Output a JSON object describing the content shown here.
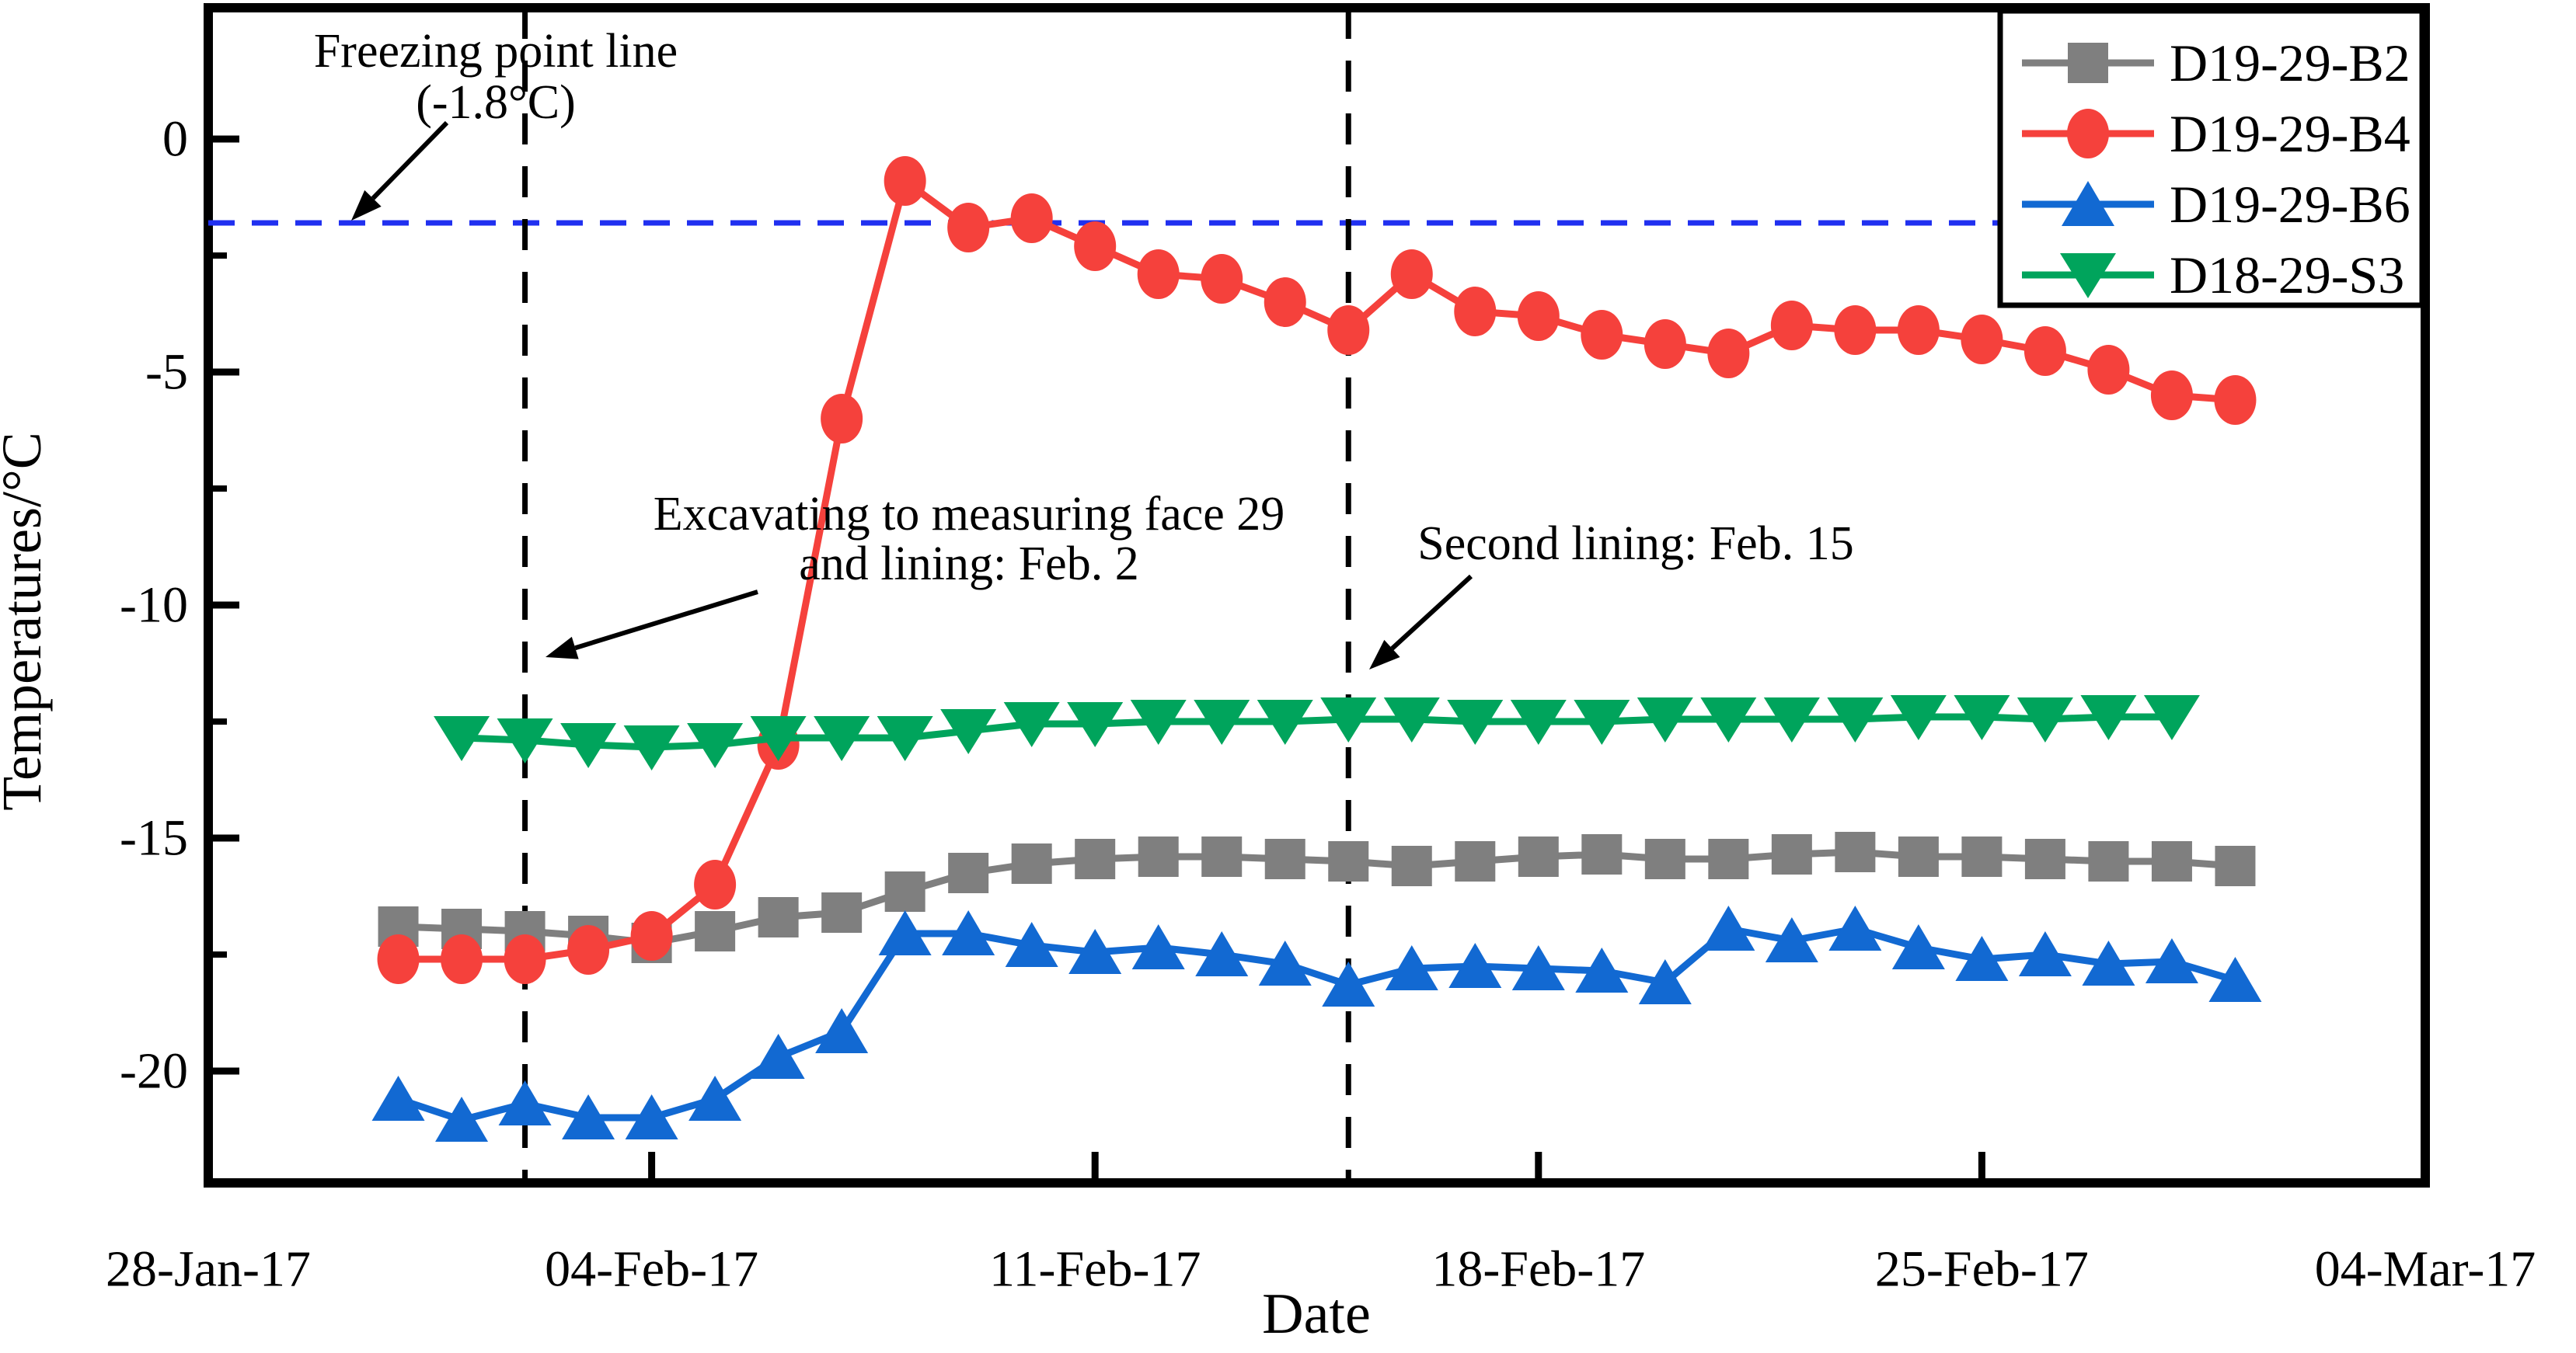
{
  "chart_data": {
    "type": "line",
    "title": "",
    "xlabel": "Date",
    "ylabel": "Temperatures/°C",
    "x_axis": {
      "tick_labels": [
        "28-Jan-17",
        "04-Feb-17",
        "11-Feb-17",
        "18-Feb-17",
        "25-Feb-17",
        "04-Mar-17"
      ],
      "tick_days_from_start": [
        0,
        7,
        14,
        21,
        28,
        35
      ],
      "start_date": "28-Jan-17"
    },
    "y_axis": {
      "tick_labels": [
        "0",
        "-5",
        "-10",
        "-15",
        "-20"
      ],
      "tick_values": [
        0,
        -5,
        -10,
        -15,
        -20
      ],
      "minor_tick_values": [
        -2.5,
        -7.5,
        -12.5,
        -17.5
      ],
      "range": [
        -22.4,
        2.8
      ],
      "grid": false
    },
    "legend_position": "top-right",
    "series": [
      {
        "id": "B2",
        "label": "D19-29-B2",
        "color": "#7f7f7f",
        "marker": "square",
        "start_day": 3,
        "dates": [
          "31-Jan",
          "01-Feb",
          "02-Feb",
          "03-Feb",
          "04-Feb",
          "05-Feb",
          "06-Feb",
          "07-Feb",
          "08-Feb",
          "09-Feb",
          "10-Feb",
          "11-Feb",
          "12-Feb",
          "13-Feb",
          "14-Feb",
          "15-Feb",
          "16-Feb",
          "17-Feb",
          "18-Feb",
          "19-Feb",
          "20-Feb",
          "21-Feb",
          "22-Feb",
          "23-Feb",
          "24-Feb",
          "25-Feb",
          "26-Feb",
          "27-Feb",
          "28-Feb",
          "01-Mar"
        ],
        "values": [
          -16.9,
          -16.95,
          -17.0,
          -17.1,
          -17.25,
          -17.0,
          -16.7,
          -16.6,
          -16.15,
          -15.75,
          -15.55,
          -15.45,
          -15.4,
          -15.4,
          -15.45,
          -15.5,
          -15.6,
          -15.5,
          -15.4,
          -15.35,
          -15.45,
          -15.45,
          -15.35,
          -15.3,
          -15.4,
          -15.4,
          -15.45,
          -15.5,
          -15.5,
          -15.6
        ]
      },
      {
        "id": "B4",
        "label": "D19-29-B4",
        "color": "#f5413c",
        "marker": "circle",
        "start_day": 3,
        "dates": [
          "31-Jan",
          "01-Feb",
          "02-Feb",
          "03-Feb",
          "04-Feb",
          "05-Feb",
          "06-Feb",
          "07-Feb",
          "08-Feb",
          "09-Feb",
          "10-Feb",
          "11-Feb",
          "12-Feb",
          "13-Feb",
          "14-Feb",
          "15-Feb",
          "16-Feb",
          "17-Feb",
          "18-Feb",
          "19-Feb",
          "20-Feb",
          "21-Feb",
          "22-Feb",
          "23-Feb",
          "24-Feb",
          "25-Feb",
          "26-Feb",
          "27-Feb",
          "28-Feb",
          "01-Mar"
        ],
        "values": [
          -17.6,
          -17.6,
          -17.6,
          -17.4,
          -17.1,
          -16.0,
          -13.0,
          -6.0,
          -0.9,
          -1.9,
          -1.7,
          -2.3,
          -2.9,
          -3.0,
          -3.5,
          -4.1,
          -2.9,
          -3.7,
          -3.8,
          -4.2,
          -4.4,
          -4.6,
          -4.0,
          -4.1,
          -4.1,
          -4.3,
          -4.55,
          -4.95,
          -5.5,
          -5.6
        ]
      },
      {
        "id": "B6",
        "label": "D19-29-B6",
        "color": "#1269d2",
        "marker": "triangle-up",
        "start_day": 3,
        "dates": [
          "31-Jan",
          "01-Feb",
          "02-Feb",
          "03-Feb",
          "04-Feb",
          "05-Feb",
          "06-Feb",
          "07-Feb",
          "08-Feb",
          "09-Feb",
          "10-Feb",
          "11-Feb",
          "12-Feb",
          "13-Feb",
          "14-Feb",
          "15-Feb",
          "16-Feb",
          "17-Feb",
          "18-Feb",
          "19-Feb",
          "20-Feb",
          "21-Feb",
          "22-Feb",
          "23-Feb",
          "24-Feb",
          "25-Feb",
          "26-Feb",
          "27-Feb",
          "28-Feb",
          "01-Mar"
        ],
        "values": [
          -20.6,
          -21.05,
          -20.7,
          -21.0,
          -21.0,
          -20.6,
          -19.7,
          -19.15,
          -17.05,
          -17.05,
          -17.3,
          -17.45,
          -17.35,
          -17.5,
          -17.7,
          -18.15,
          -17.8,
          -17.75,
          -17.8,
          -17.85,
          -18.1,
          -16.95,
          -17.2,
          -16.95,
          -17.35,
          -17.6,
          -17.5,
          -17.7,
          -17.65,
          -18.05
        ]
      },
      {
        "id": "S3",
        "label": "D18-29-S3",
        "color": "#00a45c",
        "marker": "triangle-down",
        "start_day": 4,
        "dates": [
          "01-Feb",
          "02-Feb",
          "03-Feb",
          "04-Feb",
          "05-Feb",
          "06-Feb",
          "07-Feb",
          "08-Feb",
          "09-Feb",
          "10-Feb",
          "11-Feb",
          "12-Feb",
          "13-Feb",
          "14-Feb",
          "15-Feb",
          "16-Feb",
          "17-Feb",
          "18-Feb",
          "19-Feb",
          "20-Feb",
          "21-Feb",
          "22-Feb",
          "23-Feb",
          "24-Feb",
          "25-Feb",
          "26-Feb",
          "27-Feb",
          "28-Feb"
        ],
        "values": [
          -12.85,
          -12.9,
          -13.0,
          -13.05,
          -13.0,
          -12.85,
          -12.85,
          -12.85,
          -12.7,
          -12.55,
          -12.55,
          -12.5,
          -12.5,
          -12.5,
          -12.45,
          -12.45,
          -12.5,
          -12.5,
          -12.5,
          -12.45,
          -12.45,
          -12.45,
          -12.45,
          -12.4,
          -12.4,
          -12.45,
          -12.4,
          -12.4
        ]
      }
    ],
    "reference_lines": {
      "freezing_point": {
        "value": -1.8,
        "color": "#2030f0",
        "style": "dashed",
        "orientation": "horizontal"
      },
      "event_lines": [
        {
          "day": 5,
          "date": "02-Feb",
          "color": "#000000",
          "style": "dashed",
          "orientation": "vertical"
        },
        {
          "day": 18,
          "date": "15-Feb",
          "color": "#000000",
          "style": "dashed",
          "orientation": "vertical"
        }
      ]
    },
    "annotations": [
      {
        "id": "freezing-label",
        "lines": [
          "Freezing point line",
          "(-1.8°C)"
        ],
        "cx": 638,
        "line_y": [
          66,
          132
        ],
        "arrow": {
          "from": [
            575,
            158
          ],
          "to": [
            452,
            284
          ]
        }
      },
      {
        "id": "excavating-label",
        "lines": [
          "Excavating to measuring face 29",
          "and lining: Feb. 2"
        ],
        "cx": 1247,
        "line_y": [
          662,
          726
        ],
        "arrow": {
          "from": [
            975,
            762
          ],
          "to": [
            702,
            846
          ]
        }
      },
      {
        "id": "second-lining-label",
        "lines": [
          "Second lining: Feb. 15"
        ],
        "cx": 2105,
        "line_y": [
          700
        ],
        "arrow": {
          "from": [
            1893,
            742
          ],
          "to": [
            1762,
            862
          ]
        }
      }
    ]
  }
}
